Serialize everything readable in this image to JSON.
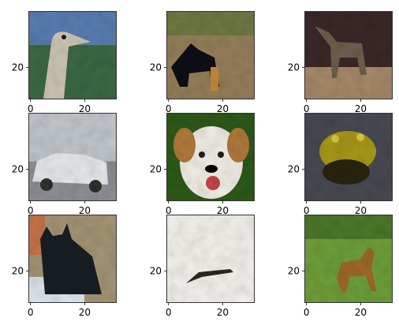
{
  "figure": {
    "subplots": [
      {
        "content": "ostrich head",
        "bg": "#3d6a44",
        "fg": "#cfc7b7"
      },
      {
        "content": "black dog",
        "bg": "#97805b",
        "fg": "#15161a"
      },
      {
        "content": "deer",
        "bg": "#3c2c2a",
        "fg": "#6f6150"
      },
      {
        "content": "white car",
        "bg": "#aab0b6",
        "fg": "#e8eaec"
      },
      {
        "content": "dog face",
        "bg": "#2f5c1c",
        "fg": "#f3efe8"
      },
      {
        "content": "frog",
        "bg": "#4a4c52",
        "fg": "#a99a1d"
      },
      {
        "content": "black cat",
        "bg": "#a69677",
        "fg": "#1f2225"
      },
      {
        "content": "airplane",
        "bg": "#f5f3ee",
        "fg": "#2b2b24"
      },
      {
        "content": "deer in grass",
        "bg": "#6ea03a",
        "fg": "#a06a2c"
      }
    ],
    "x_ticks": [
      "0",
      "20"
    ],
    "y_ticks": [
      "20"
    ]
  }
}
